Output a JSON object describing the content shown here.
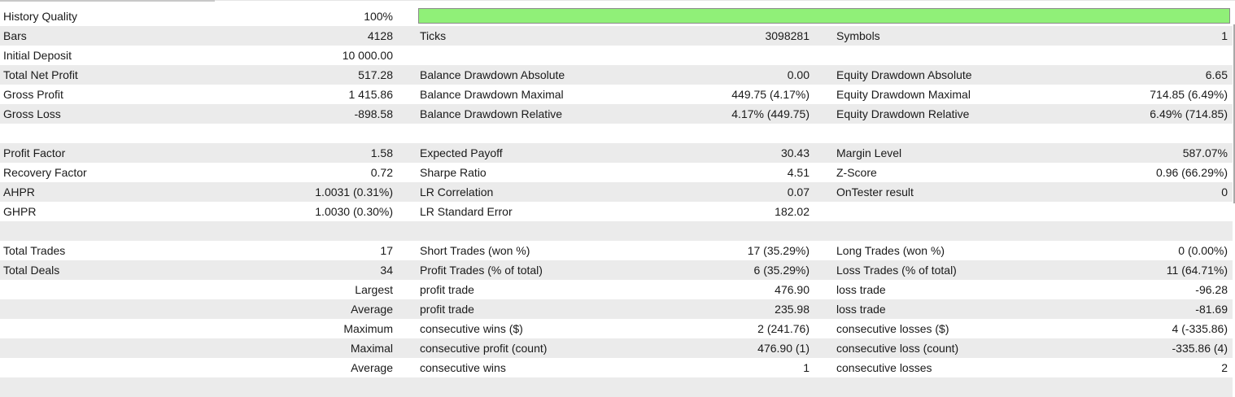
{
  "quality_bar": {
    "fill_percent": 100,
    "color": "#90f078"
  },
  "rows": [
    {
      "alt": false,
      "c1": "History Quality",
      "c2": "100%",
      "c3": "",
      "c4": "",
      "c5": "",
      "c6": ""
    },
    {
      "alt": true,
      "c1": "Bars",
      "c2": "4128",
      "c3": "Ticks",
      "c4": "3098281",
      "c5": "Symbols",
      "c6": "1"
    },
    {
      "alt": false,
      "c1": "Initial Deposit",
      "c2": "10 000.00",
      "c3": "",
      "c4": "",
      "c5": "",
      "c6": ""
    },
    {
      "alt": true,
      "c1": "Total Net Profit",
      "c2": "517.28",
      "c3": "Balance Drawdown Absolute",
      "c4": "0.00",
      "c5": "Equity Drawdown Absolute",
      "c6": "6.65"
    },
    {
      "alt": false,
      "c1": "Gross Profit",
      "c2": "1 415.86",
      "c3": "Balance Drawdown Maximal",
      "c4": "449.75 (4.17%)",
      "c5": "Equity Drawdown Maximal",
      "c6": "714.85 (6.49%)"
    },
    {
      "alt": true,
      "c1": "Gross Loss",
      "c2": "-898.58",
      "c3": "Balance Drawdown Relative",
      "c4": "4.17% (449.75)",
      "c5": "Equity Drawdown Relative",
      "c6": "6.49% (714.85)"
    },
    {
      "alt": false,
      "c1": "",
      "c2": "",
      "c3": "",
      "c4": "",
      "c5": "",
      "c6": ""
    },
    {
      "alt": true,
      "c1": "Profit Factor",
      "c2": "1.58",
      "c3": "Expected Payoff",
      "c4": "30.43",
      "c5": "Margin Level",
      "c6": "587.07%"
    },
    {
      "alt": false,
      "c1": "Recovery Factor",
      "c2": "0.72",
      "c3": "Sharpe Ratio",
      "c4": "4.51",
      "c5": "Z-Score",
      "c6": "0.96 (66.29%)"
    },
    {
      "alt": true,
      "c1": "AHPR",
      "c2": "1.0031 (0.31%)",
      "c3": "LR Correlation",
      "c4": "0.07",
      "c5": "OnTester result",
      "c6": "0"
    },
    {
      "alt": false,
      "c1": "GHPR",
      "c2": "1.0030 (0.30%)",
      "c3": "LR Standard Error",
      "c4": "182.02",
      "c5": "",
      "c6": ""
    },
    {
      "alt": true,
      "c1": "",
      "c2": "",
      "c3": "",
      "c4": "",
      "c5": "",
      "c6": ""
    },
    {
      "alt": false,
      "c1": "Total Trades",
      "c2": "17",
      "c3": "Short Trades (won %)",
      "c4": "17 (35.29%)",
      "c5": "Long Trades (won %)",
      "c6": "0 (0.00%)"
    },
    {
      "alt": true,
      "c1": "Total Deals",
      "c2": "34",
      "c3": "Profit Trades (% of total)",
      "c4": "6 (35.29%)",
      "c5": "Loss Trades (% of total)",
      "c6": "11 (64.71%)"
    },
    {
      "alt": false,
      "c1": "",
      "c2": "Largest",
      "c3": "profit trade",
      "c4": "476.90",
      "c5": "loss trade",
      "c6": "-96.28"
    },
    {
      "alt": true,
      "c1": "",
      "c2": "Average",
      "c3": "profit trade",
      "c4": "235.98",
      "c5": "loss trade",
      "c6": "-81.69"
    },
    {
      "alt": false,
      "c1": "",
      "c2": "Maximum",
      "c3": "consecutive wins ($)",
      "c4": "2 (241.76)",
      "c5": "consecutive losses ($)",
      "c6": "4 (-335.86)"
    },
    {
      "alt": true,
      "c1": "",
      "c2": "Maximal",
      "c3": "consecutive profit (count)",
      "c4": "476.90 (1)",
      "c5": "consecutive loss (count)",
      "c6": "-335.86 (4)"
    },
    {
      "alt": false,
      "c1": "",
      "c2": "Average",
      "c3": "consecutive wins",
      "c4": "1",
      "c5": "consecutive losses",
      "c6": "2"
    },
    {
      "alt": true,
      "c1": "",
      "c2": "",
      "c3": "",
      "c4": "",
      "c5": "",
      "c6": ""
    }
  ]
}
